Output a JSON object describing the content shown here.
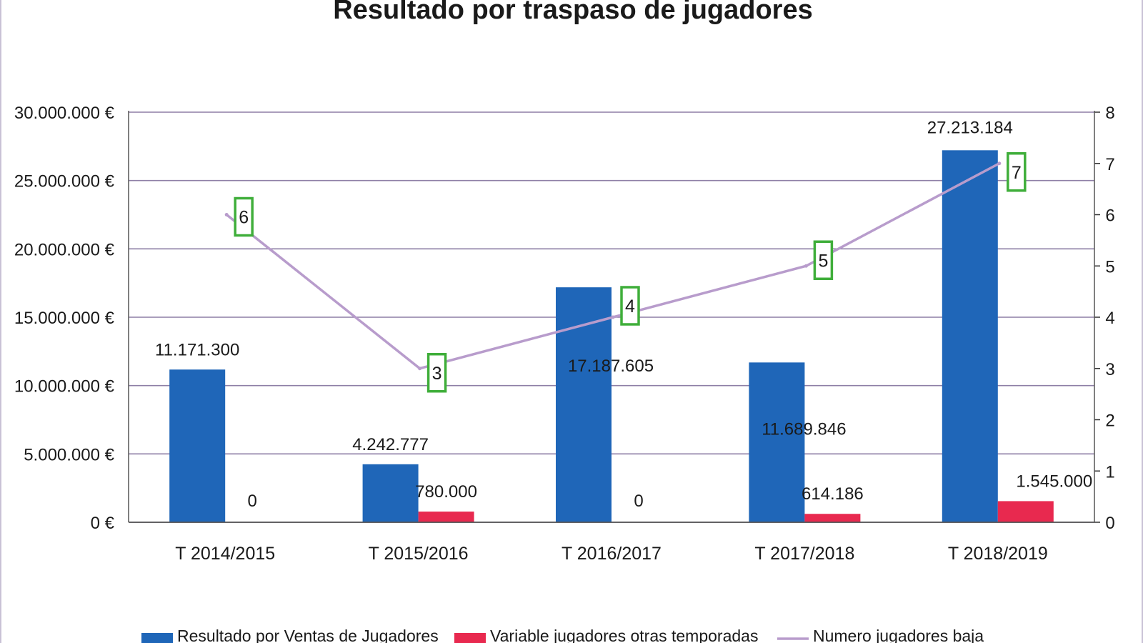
{
  "chart_data": {
    "type": "bar",
    "title": "Resultado por traspaso de jugadores",
    "categories": [
      "T 2014/2015",
      "T 2015/2016",
      "T 2016/2017",
      "T 2017/2018",
      "T 2018/2019"
    ],
    "series": [
      {
        "name": "Resultado por Ventas de Jugadores",
        "type": "bar",
        "axis": "left",
        "color": "#1f66b8",
        "values": [
          11171300,
          4242777,
          17187605,
          11689846,
          27213184
        ],
        "labels": [
          "11.171.300",
          "4.242.777",
          "17.187.605",
          "11.689.846",
          "27.213.184"
        ]
      },
      {
        "name": "Variable jugadores otras temporadas",
        "type": "bar",
        "axis": "left",
        "color": "#e8294f",
        "values": [
          0,
          780000,
          0,
          614186,
          1545000
        ],
        "labels": [
          "0",
          "780.000",
          "0",
          "614.186",
          "1.545.000"
        ]
      },
      {
        "name": "Numero jugadores baja",
        "type": "line",
        "axis": "right",
        "color": "#b89ccc",
        "label_box_color": "#3fae3a",
        "values": [
          6,
          3,
          4,
          5,
          7
        ],
        "labels": [
          "6",
          "3",
          "4",
          "5",
          "7"
        ]
      }
    ],
    "y_left": {
      "range": [
        0,
        30000000
      ],
      "ticks": [
        0,
        5000000,
        10000000,
        15000000,
        20000000,
        25000000,
        30000000
      ],
      "tick_labels": [
        "0 €",
        "5.000.000 €",
        "10.000.000 €",
        "15.000.000 €",
        "20.000.000 €",
        "25.000.000 €",
        "30.000.000 €"
      ]
    },
    "y_right": {
      "range": [
        0,
        8
      ],
      "ticks": [
        0,
        1,
        2,
        3,
        4,
        5,
        6,
        7,
        8
      ],
      "tick_labels": [
        "0",
        "1",
        "2",
        "3",
        "4",
        "5",
        "6",
        "7",
        "8"
      ]
    },
    "grid": true,
    "gridline_color": "#8e7fa6",
    "legend_position": "bottom"
  }
}
